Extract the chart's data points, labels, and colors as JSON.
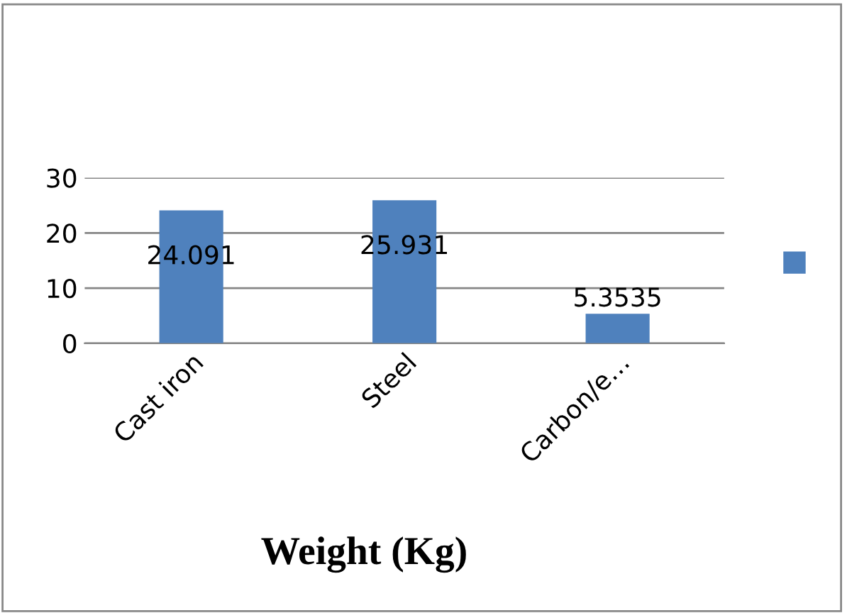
{
  "chart_data": {
    "type": "bar",
    "title": "Weight (Kg)",
    "categories": [
      "Cast iron",
      "Steel",
      "Carbon/e…"
    ],
    "series": [
      {
        "color": "#4f81bd",
        "values": [
          24.091,
          25.931,
          5.3535
        ]
      }
    ],
    "ylim": [
      0,
      30
    ],
    "yticks": [
      0,
      10,
      20,
      30
    ],
    "grid": "y",
    "data_labels": true
  }
}
